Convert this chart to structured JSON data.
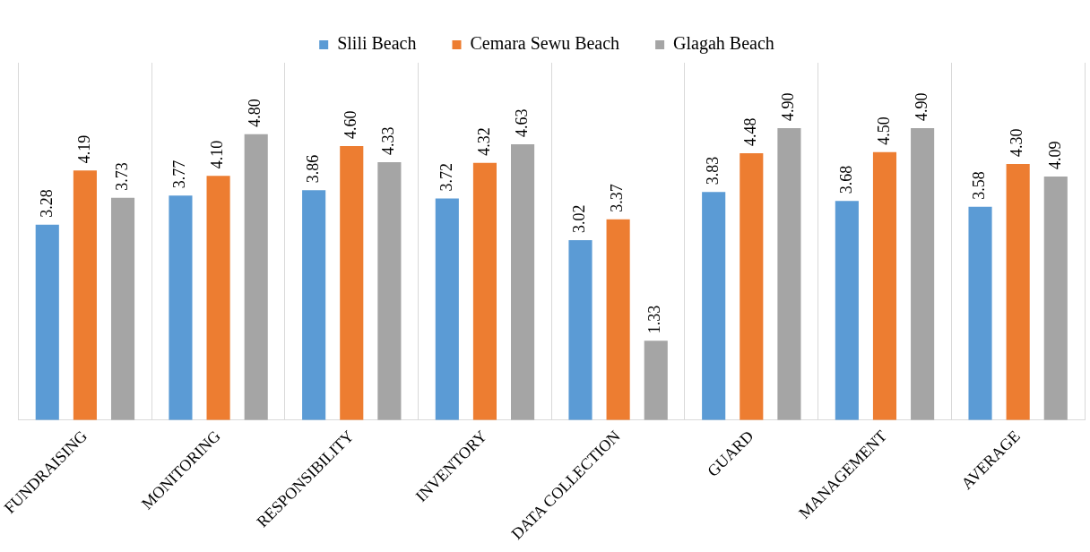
{
  "chart_data": {
    "type": "bar",
    "categories": [
      "FUNDRAISING",
      "MONITORING",
      "RESPONSIBILITY",
      "INVENTORY",
      "DATA COLLECTION",
      "GUARD",
      "MANAGEMENT",
      "AVERAGE"
    ],
    "series": [
      {
        "name": "Slili Beach",
        "color": "#5b9bd5",
        "values": [
          3.28,
          3.77,
          3.86,
          3.72,
          3.02,
          3.83,
          3.68,
          3.58
        ],
        "value_labels": [
          "3.28",
          "3.77",
          "3.86",
          "3.72",
          "3.02",
          "3.83",
          "3.68",
          "3.58"
        ]
      },
      {
        "name": "Cemara Sewu Beach",
        "color": "#ed7d31",
        "values": [
          4.19,
          4.1,
          4.6,
          4.32,
          3.37,
          4.48,
          4.5,
          4.3
        ],
        "value_labels": [
          "4.19",
          "4.10",
          "4.60",
          "4.32",
          "3.37",
          "4.48",
          "4.50",
          "4.30"
        ]
      },
      {
        "name": "Glagah Beach",
        "color": "#a5a5a5",
        "values": [
          3.73,
          4.8,
          4.33,
          4.63,
          1.33,
          4.9,
          4.9,
          4.09
        ],
        "value_labels": [
          "3.73",
          "4.80",
          "4.33",
          "4.63",
          "1.33",
          "4.90",
          "4.90",
          "4.09"
        ]
      }
    ],
    "ylim": [
      0,
      6
    ],
    "tick_labels": "x",
    "grid": "x",
    "legend": "top"
  }
}
